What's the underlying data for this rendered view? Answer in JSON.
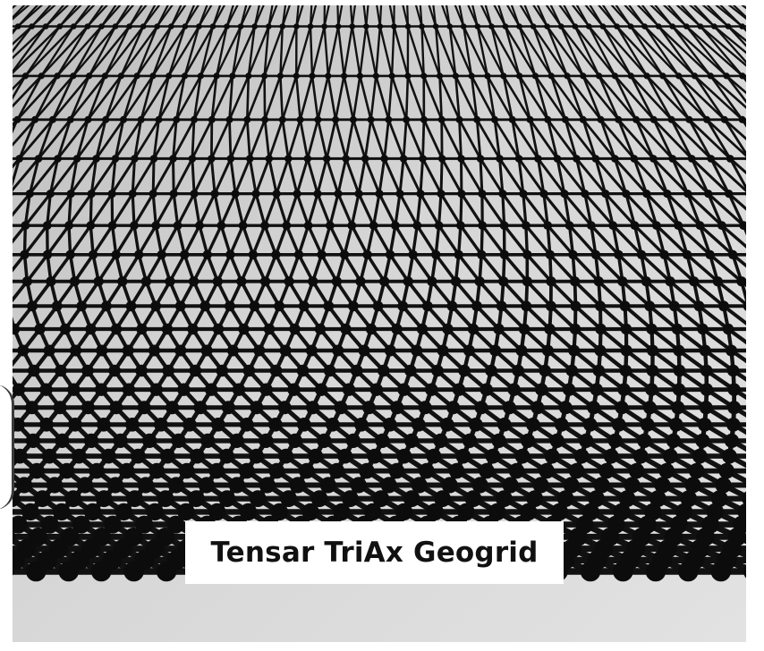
{
  "image": {
    "subject": "triaxial-geogrid-photo",
    "colors": {
      "surface": "#c9c9c9",
      "surface_light": "#dcdcdc",
      "ribs": "#111111",
      "label_background": "#ffffff",
      "label_text": "#111111"
    }
  },
  "caption": {
    "text": "Tensar TriAx Geogrid"
  }
}
